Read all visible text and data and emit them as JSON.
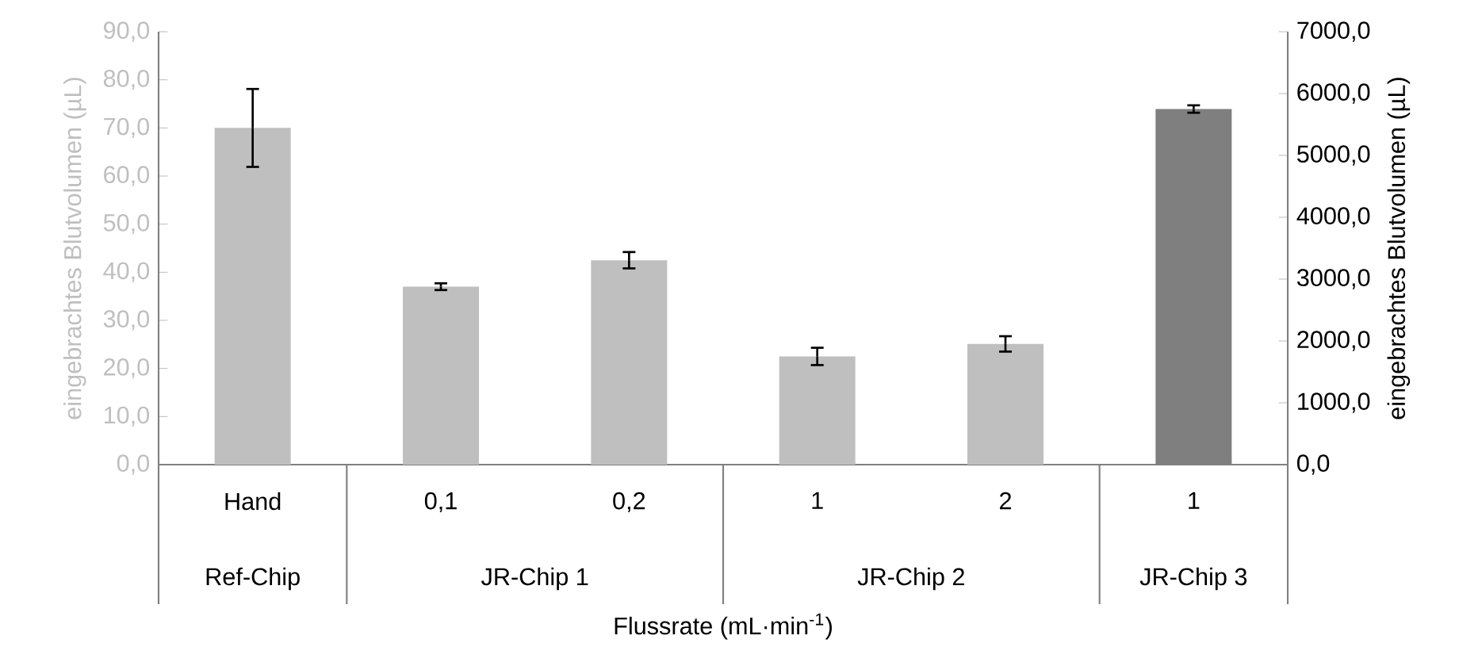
{
  "chart_data": {
    "type": "bar",
    "categories": [
      "Hand",
      "0,1",
      "0,2",
      "1",
      "2",
      "1"
    ],
    "series": [
      {
        "color": "#bfbfbf",
        "values": [
          70.0,
          37.0,
          42.5,
          22.5,
          25.1,
          null
        ],
        "errors": [
          8.1,
          0.7,
          1.7,
          1.8,
          1.6,
          null
        ]
      },
      {
        "color": "#7f7f7f",
        "axis": "y2",
        "values": [
          null,
          null,
          null,
          null,
          null,
          5750
        ],
        "errors": [
          null,
          null,
          null,
          null,
          null,
          60
        ]
      }
    ],
    "ylim": [
      0,
      90
    ],
    "yticks": [
      {
        "value": 0,
        "label": "0,0"
      },
      {
        "value": 10,
        "label": "10,0"
      },
      {
        "value": 20,
        "label": "20,0"
      },
      {
        "value": 30,
        "label": "30,0"
      },
      {
        "value": 40,
        "label": "40,0"
      },
      {
        "value": 50,
        "label": "50,0"
      },
      {
        "value": 60,
        "label": "60,0"
      },
      {
        "value": 70,
        "label": "70,0"
      },
      {
        "value": 80,
        "label": "80,0"
      },
      {
        "value": 90,
        "label": "90,0"
      }
    ],
    "y2lim": [
      0,
      7000
    ],
    "y2ticks": [
      {
        "value": 0,
        "label": "0,0"
      },
      {
        "value": 1000,
        "label": "1000,0"
      },
      {
        "value": 2000,
        "label": "2000,0"
      },
      {
        "value": 3000,
        "label": "3000,0"
      },
      {
        "value": 4000,
        "label": "4000,0"
      },
      {
        "value": 5000,
        "label": "5000,0"
      },
      {
        "value": 6000,
        "label": "6000,0"
      },
      {
        "value": 7000,
        "label": "7000,0"
      }
    ],
    "ylabel": "eingebrachtes Blutvolumen (µL)",
    "y2label": "eingebrachtes Blutvolumen (µL)",
    "xlabel": "Flussrate (mL·min$^{-1}$)",
    "annotations": [
      "Ref-Chip",
      "JR-Chip 1",
      "JR-Chip 2",
      "JR-Chip 3"
    ]
  }
}
